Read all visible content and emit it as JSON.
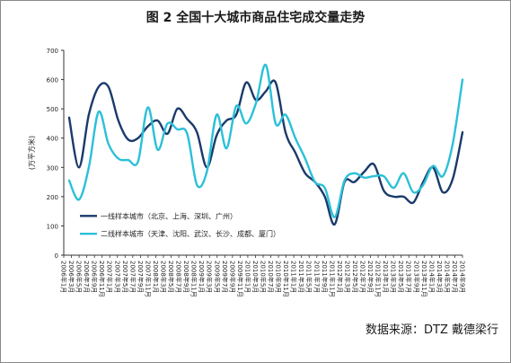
{
  "figure": {
    "title": "图 2  全国十大城市商品住宅成交量走势",
    "source": "数据来源：DTZ 戴德梁行"
  },
  "chart_data": {
    "type": "line",
    "ylabel": "(万平方米)",
    "ylim": [
      0,
      700
    ],
    "yticks": [
      0,
      100,
      200,
      300,
      400,
      500,
      600,
      700
    ],
    "grid": false,
    "legend_placement": "lower-left",
    "x_tick_labels": [
      "2006年1月",
      "2006年3月",
      "2006年5月",
      "2006年7月",
      "2006年9月",
      "2006年11月",
      "2007年1月",
      "2007年3月",
      "2007年5月",
      "2007年7月",
      "2007年9月",
      "2007年11月",
      "2008年1月",
      "2008年3月",
      "2008年5月",
      "2008年7月",
      "2008年9月",
      "2008年11月",
      "2009年1月",
      "2009年3月",
      "2009年5月",
      "2009年7月",
      "2009年9月",
      "2009年11月",
      "2010年1月",
      "2010年3月",
      "2010年5月",
      "2010年7月",
      "2010年9月",
      "2010年11月",
      "2011年1月",
      "2011年3月",
      "2011年5月",
      "2011年7月",
      "2011年9月",
      "2011年11月",
      "2012年1月",
      "2012年3月",
      "2012年5月",
      "2012年7月",
      "2012年9月",
      "2012年11月",
      "2013年1月",
      "2013年3月",
      "2013年5月",
      "2013年7月",
      "2013年9月",
      "2013年11月",
      "2014年1月",
      "2014年3月",
      "2014年5月",
      "2014年7月",
      "2014年9月"
    ],
    "series": [
      {
        "name": "一线样本城市（北京、上海、深圳、广州）",
        "color": "#1a3a6b",
        "values": [
          470,
          300,
          480,
          575,
          575,
          460,
          395,
          400,
          440,
          460,
          415,
          500,
          465,
          420,
          300,
          410,
          460,
          480,
          590,
          530,
          560,
          590,
          420,
          350,
          280,
          250,
          200,
          105,
          250,
          250,
          285,
          310,
          220,
          200,
          200,
          180,
          250,
          300,
          215,
          260,
          420
        ]
      },
      {
        "name": "二线样本城市（天津、沈阳、武汉、长沙、成都、厦门）",
        "color": "#2bc0d8",
        "values": [
          255,
          190,
          300,
          490,
          380,
          330,
          325,
          320,
          505,
          360,
          450,
          430,
          415,
          240,
          285,
          480,
          365,
          510,
          450,
          520,
          650,
          450,
          480,
          400,
          330,
          250,
          230,
          130,
          255,
          280,
          265,
          270,
          270,
          230,
          280,
          215,
          240,
          305,
          270,
          380,
          600
        ]
      }
    ]
  }
}
